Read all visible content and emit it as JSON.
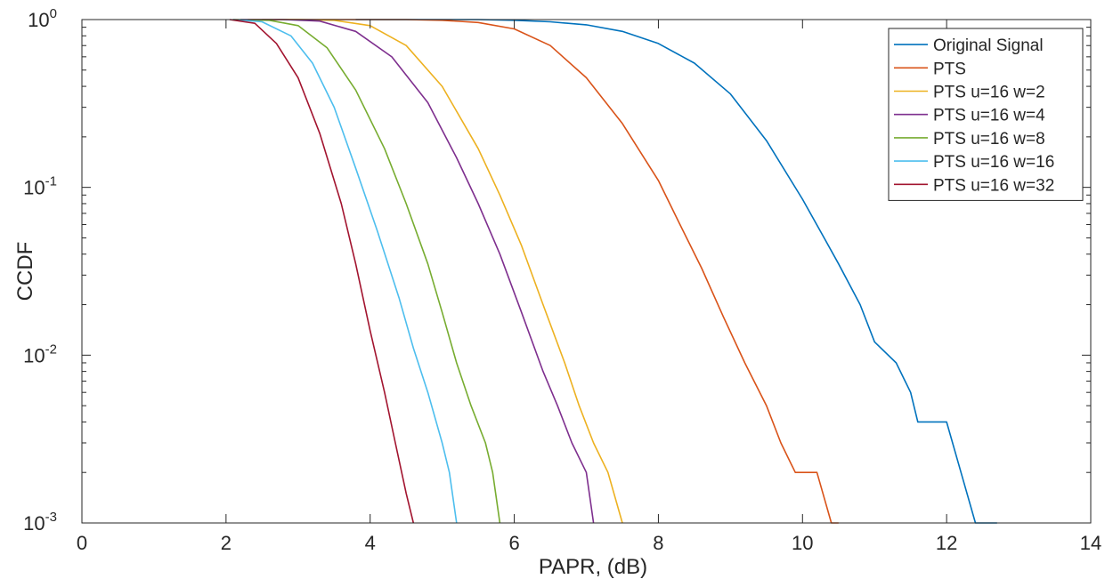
{
  "chart_data": {
    "type": "line",
    "title": "",
    "xlabel": "PAPR, (dB)",
    "ylabel": "CCDF",
    "xlim": [
      0,
      14
    ],
    "ylim": [
      0.001,
      1
    ],
    "yscale": "log",
    "x_ticks": [
      0,
      2,
      4,
      6,
      8,
      10,
      12,
      14
    ],
    "x_tick_labels": [
      "0",
      "2",
      "4",
      "6",
      "8",
      "10",
      "12",
      "14"
    ],
    "y_ticks": [
      {
        "value": 1,
        "base": "10",
        "exp": "0"
      },
      {
        "value": 0.1,
        "base": "10",
        "exp": "-1"
      },
      {
        "value": 0.01,
        "base": "10",
        "exp": "-2"
      },
      {
        "value": 0.001,
        "base": "10",
        "exp": "-3"
      }
    ],
    "grid": false,
    "legend_position": "top-right",
    "series": [
      {
        "name": "Original Signal",
        "color": "#0072BD",
        "x": [
          3.8,
          4.5,
          5.5,
          6.0,
          6.5,
          7.0,
          7.5,
          8.0,
          8.5,
          9.0,
          9.5,
          10.0,
          10.3,
          10.5,
          10.8,
          11.0,
          11.3,
          11.5,
          11.6,
          12.0,
          12.2,
          12.4,
          12.7
        ],
        "y": [
          1,
          1,
          1,
          0.99,
          0.97,
          0.93,
          0.85,
          0.72,
          0.55,
          0.36,
          0.19,
          0.085,
          0.05,
          0.035,
          0.02,
          0.012,
          0.009,
          0.006,
          0.004,
          0.004,
          0.002,
          0.001,
          0.001
        ]
      },
      {
        "name": "PTS",
        "color": "#D95319",
        "x": [
          2.5,
          3.5,
          4.5,
          5.0,
          5.5,
          6.0,
          6.5,
          7.0,
          7.5,
          8.0,
          8.3,
          8.6,
          8.9,
          9.2,
          9.5,
          9.7,
          9.9,
          10.2,
          10.4,
          10.5
        ],
        "y": [
          1,
          1,
          1,
          0.99,
          0.96,
          0.88,
          0.7,
          0.45,
          0.24,
          0.11,
          0.06,
          0.033,
          0.017,
          0.009,
          0.005,
          0.003,
          0.002,
          0.002,
          0.001,
          0.001
        ]
      },
      {
        "name": "PTS u=16 w=2",
        "color": "#EDB120",
        "x": [
          2.3,
          3.0,
          3.5,
          4.0,
          4.5,
          5.0,
          5.5,
          5.8,
          6.1,
          6.4,
          6.7,
          6.9,
          7.1,
          7.3,
          7.5
        ],
        "y": [
          1,
          1,
          0.99,
          0.92,
          0.7,
          0.4,
          0.17,
          0.09,
          0.045,
          0.02,
          0.009,
          0.005,
          0.003,
          0.002,
          0.001
        ]
      },
      {
        "name": "PTS u=16 w=4",
        "color": "#7E2F8E",
        "x": [
          2.2,
          2.8,
          3.3,
          3.8,
          4.3,
          4.8,
          5.2,
          5.5,
          5.8,
          6.1,
          6.4,
          6.6,
          6.8,
          7.0,
          7.1
        ],
        "y": [
          1,
          1,
          0.98,
          0.85,
          0.6,
          0.32,
          0.15,
          0.08,
          0.04,
          0.018,
          0.008,
          0.005,
          0.003,
          0.002,
          0.001
        ]
      },
      {
        "name": "PTS u=16 w=8",
        "color": "#77AC30",
        "x": [
          2.1,
          2.6,
          3.0,
          3.4,
          3.8,
          4.2,
          4.5,
          4.8,
          5.0,
          5.2,
          5.4,
          5.6,
          5.7,
          5.8
        ],
        "y": [
          1,
          0.99,
          0.92,
          0.68,
          0.38,
          0.17,
          0.08,
          0.035,
          0.018,
          0.009,
          0.005,
          0.003,
          0.002,
          0.001
        ]
      },
      {
        "name": "PTS u=16 w=16",
        "color": "#4DBEEE",
        "x": [
          2.1,
          2.5,
          2.9,
          3.2,
          3.5,
          3.8,
          4.1,
          4.4,
          4.6,
          4.8,
          5.0,
          5.1,
          5.2
        ],
        "y": [
          1,
          0.97,
          0.8,
          0.55,
          0.3,
          0.13,
          0.055,
          0.022,
          0.011,
          0.006,
          0.003,
          0.002,
          0.001
        ]
      },
      {
        "name": "PTS u=16 w=32",
        "color": "#A2142F",
        "x": [
          2.05,
          2.4,
          2.7,
          3.0,
          3.3,
          3.6,
          3.8,
          4.0,
          4.2,
          4.35,
          4.5,
          4.6
        ],
        "y": [
          1,
          0.95,
          0.72,
          0.45,
          0.21,
          0.08,
          0.035,
          0.014,
          0.006,
          0.003,
          0.0015,
          0.001
        ]
      }
    ]
  }
}
